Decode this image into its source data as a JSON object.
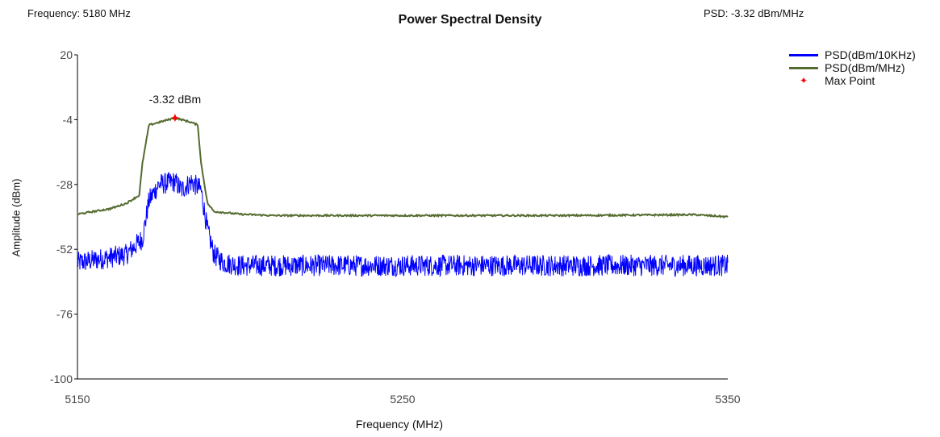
{
  "header": {
    "frequency_text": "Frequency: 5180 MHz",
    "psd_text": "PSD: -3.32 dBm/MHz"
  },
  "chart_data": {
    "type": "line",
    "title": "Power Spectral Density",
    "xlabel": "Frequency (MHz)",
    "ylabel": "Amplitude (dBm)",
    "xlim": [
      5150,
      5350
    ],
    "ylim": [
      -100,
      20
    ],
    "xticks": [
      5150,
      5250,
      5350
    ],
    "yticks": [
      20,
      -4,
      -28,
      -52,
      -76,
      -100
    ],
    "legend_position": "top-right",
    "series": [
      {
        "name": "PSD(dBm/10KHz)",
        "color": "#0000ff",
        "x": [
          5150,
          5155,
          5160,
          5165,
          5170,
          5172,
          5175,
          5180,
          5182,
          5185,
          5188,
          5190,
          5192,
          5195,
          5200,
          5210,
          5230,
          5250,
          5270,
          5290,
          5310,
          5330,
          5350
        ],
        "y": [
          -57,
          -56,
          -55,
          -54,
          -48,
          -34,
          -28,
          -27,
          -30,
          -27,
          -30,
          -45,
          -54,
          -57,
          -58,
          -58,
          -58,
          -58,
          -58,
          -58,
          -58,
          -58,
          -58
        ],
        "noise_range": 4
      },
      {
        "name": "PSD(dBm/MHz)",
        "color": "#556b2f",
        "x": [
          5150,
          5155,
          5160,
          5165,
          5169,
          5170,
          5172,
          5175,
          5180,
          5185,
          5187,
          5188,
          5190,
          5192,
          5200,
          5210,
          5250,
          5300,
          5340,
          5350
        ],
        "y": [
          -39,
          -38,
          -37,
          -35,
          -32,
          -20,
          -6,
          -5,
          -3.32,
          -5,
          -6,
          -20,
          -35,
          -38,
          -39,
          -39.5,
          -39.5,
          -39.5,
          -39.2,
          -40
        ]
      }
    ],
    "max_point": {
      "name": "Max Point",
      "x": 5180,
      "y": -3.32,
      "label": "-3.32 dBm",
      "color": "#ff0000"
    }
  }
}
